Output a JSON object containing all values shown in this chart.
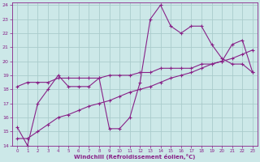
{
  "xlabel": "Windchill (Refroidissement éolien,°C)",
  "background_color": "#cce8e8",
  "grid_color": "#aacccc",
  "line_color": "#882288",
  "xlim": [
    -0.5,
    23.5
  ],
  "ylim": [
    14,
    24.2
  ],
  "xticks": [
    0,
    1,
    2,
    3,
    4,
    5,
    6,
    7,
    8,
    9,
    10,
    11,
    12,
    13,
    14,
    15,
    16,
    17,
    18,
    19,
    20,
    21,
    22,
    23
  ],
  "yticks": [
    14,
    15,
    16,
    17,
    18,
    19,
    20,
    21,
    22,
    23,
    24
  ],
  "line1_x": [
    0,
    1,
    2,
    3,
    4,
    5,
    6,
    7,
    8,
    9,
    10,
    11,
    12,
    13,
    14,
    15,
    16,
    17,
    18,
    19,
    20,
    21,
    22,
    23
  ],
  "line1_y": [
    15.3,
    14.0,
    17.0,
    18.0,
    19.0,
    18.2,
    18.2,
    18.2,
    18.8,
    15.2,
    15.2,
    16.0,
    18.5,
    23.0,
    24.0,
    22.5,
    22.0,
    22.5,
    22.5,
    21.2,
    20.2,
    19.8,
    19.8,
    19.2
  ],
  "line2_x": [
    0,
    1,
    2,
    3,
    4,
    5,
    6,
    7,
    8,
    9,
    10,
    11,
    12,
    13,
    14,
    15,
    16,
    17,
    18,
    19,
    20,
    21,
    22,
    23
  ],
  "line2_y": [
    18.2,
    18.5,
    18.5,
    18.5,
    18.8,
    18.8,
    18.8,
    18.8,
    18.8,
    19.0,
    19.0,
    19.0,
    19.2,
    19.2,
    19.5,
    19.5,
    19.5,
    19.5,
    19.8,
    19.8,
    20.0,
    21.2,
    21.5,
    19.2
  ],
  "line3_x": [
    0,
    1,
    2,
    3,
    4,
    5,
    6,
    7,
    8,
    9,
    10,
    11,
    12,
    13,
    14,
    15,
    16,
    17,
    18,
    19,
    20,
    21,
    22,
    23
  ],
  "line3_y": [
    14.5,
    14.5,
    15.0,
    15.5,
    16.0,
    16.2,
    16.5,
    16.8,
    17.0,
    17.2,
    17.5,
    17.8,
    18.0,
    18.2,
    18.5,
    18.8,
    19.0,
    19.2,
    19.5,
    19.8,
    20.0,
    20.2,
    20.5,
    20.8
  ]
}
